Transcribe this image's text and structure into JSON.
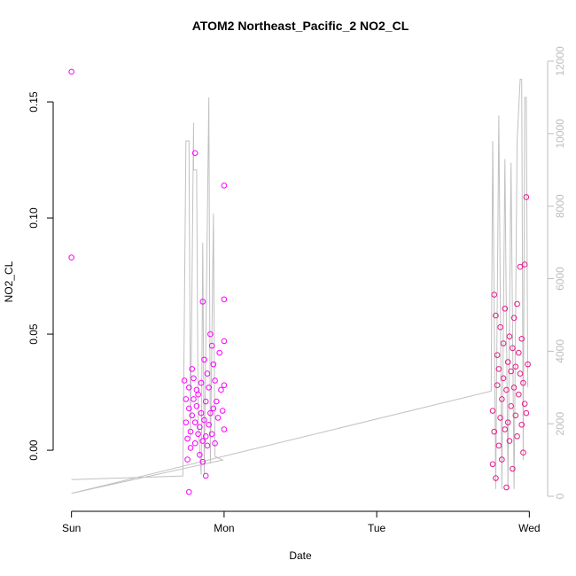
{
  "chart_data": {
    "type": "scatter",
    "title": "ATOM2 Northeast_Pacific_2 NO2_CL",
    "x_label": "Date",
    "y_label": "NO2_CL",
    "xlim": [
      -0.12,
      3.12
    ],
    "xticks": [
      {
        "value": 0,
        "label": "Sun"
      },
      {
        "value": 1,
        "label": "Mon"
      },
      {
        "value": 2,
        "label": "Tue"
      },
      {
        "value": 3,
        "label": "Wed"
      }
    ],
    "ylim": [
      -0.0263,
      0.171
    ],
    "yticks": [
      {
        "value": 0,
        "label": "0.00"
      },
      {
        "value": 0.05,
        "label": "0.05"
      },
      {
        "value": 0.1,
        "label": "0.10"
      },
      {
        "value": 0.15,
        "label": "0.15"
      }
    ],
    "y2lim": [
      -415,
      12220
    ],
    "y2ticks": [
      0,
      2000,
      4000,
      6000,
      8000,
      10000,
      12000
    ],
    "grid": false,
    "series": [
      {
        "color": "#ff00ff",
        "x": [
          0,
          0,
          0.81,
          1.0,
          0.86,
          1.0,
          0.77,
          0.88,
          0.74,
          0.75,
          0.75,
          0.76,
          0.76,
          0.77,
          0.77,
          0.78,
          0.78,
          0.79,
          0.79,
          0.8,
          0.8,
          0.81,
          0.81,
          0.82,
          0.82,
          0.83,
          0.83,
          0.84,
          0.84,
          0.85,
          0.85,
          0.86,
          0.86,
          0.87,
          0.87,
          0.88,
          0.88,
          0.89,
          0.89,
          0.9,
          0.9,
          0.91,
          0.91,
          0.92,
          0.92,
          0.93,
          0.93,
          0.94,
          0.94,
          0.95,
          0.96,
          0.97,
          0.98,
          0.99,
          1.0,
          1.0,
          1.0
        ],
        "values": [
          0.163,
          0.083,
          0.128,
          0.114,
          0.064,
          0.065,
          -0.018,
          -0.011,
          0.03,
          0.022,
          0.012,
          0.005,
          -0.004,
          0.018,
          0.027,
          0.008,
          0.001,
          0.035,
          0.015,
          0.022,
          0.031,
          0.003,
          0.012,
          0.026,
          0.019,
          0.007,
          0.024,
          -0.002,
          0.01,
          0.016,
          0.029,
          0.004,
          -0.005,
          0.039,
          0.013,
          0.006,
          0.021,
          0.002,
          0.033,
          0.027,
          0.011,
          0.05,
          0.016,
          0.045,
          0.007,
          0.037,
          0.018,
          0.03,
          0.003,
          0.021,
          0.014,
          0.042,
          0.026,
          0.017,
          0.028,
          0.047,
          0.009
        ]
      },
      {
        "color": "#e8198a",
        "x": [
          2.76,
          2.76,
          2.77,
          2.77,
          2.78,
          2.78,
          2.79,
          2.79,
          2.8,
          2.8,
          2.81,
          2.81,
          2.82,
          2.82,
          2.83,
          2.83,
          2.84,
          2.84,
          2.85,
          2.85,
          2.86,
          2.86,
          2.87,
          2.87,
          2.88,
          2.88,
          2.89,
          2.89,
          2.9,
          2.9,
          2.91,
          2.91,
          2.92,
          2.92,
          2.93,
          2.93,
          2.94,
          2.94,
          2.95,
          2.95,
          2.96,
          2.96,
          2.97,
          2.97,
          2.98,
          2.98,
          2.99
        ],
        "values": [
          0.017,
          -0.006,
          0.067,
          0.008,
          0.058,
          -0.012,
          0.041,
          0.028,
          0.002,
          0.035,
          0.053,
          0.014,
          0.022,
          -0.004,
          0.046,
          0.031,
          0.009,
          0.061,
          0.026,
          -0.016,
          0.038,
          0.012,
          0.049,
          0.004,
          0.034,
          0.019,
          0.044,
          -0.008,
          0.027,
          0.057,
          0.015,
          0.036,
          0.063,
          0.006,
          0.042,
          0.024,
          0.079,
          0.033,
          0.011,
          0.048,
          0.029,
          -0.001,
          0.02,
          0.08,
          0.109,
          0.016,
          0.037
        ]
      },
      {
        "color": "#c0c0c0",
        "axis": "y2",
        "x": [
          0,
          0.73,
          0.75,
          0.77,
          0.78,
          0.8,
          0.8,
          0.82,
          0.83,
          0.85,
          0.86,
          0.87,
          0.9,
          0.91,
          0.93,
          0.94,
          0.99,
          0,
          2.75,
          2.76,
          2.78,
          2.8,
          2.82,
          2.84,
          2.86,
          2.88,
          2.9,
          2.92,
          2.94,
          2.95,
          2.96,
          2.97,
          2.98,
          2.99
        ],
        "values": [
          460,
          560,
          9800,
          9800,
          1600,
          10300,
          9000,
          9000,
          2000,
          600,
          7000,
          600,
          11000,
          900,
          7800,
          1100,
          1000,
          80,
          2900,
          9800,
          200,
          10500,
          200,
          9300,
          200,
          9200,
          200,
          9800,
          11500,
          11500,
          1000,
          11000,
          11000,
          3000
        ]
      }
    ]
  }
}
